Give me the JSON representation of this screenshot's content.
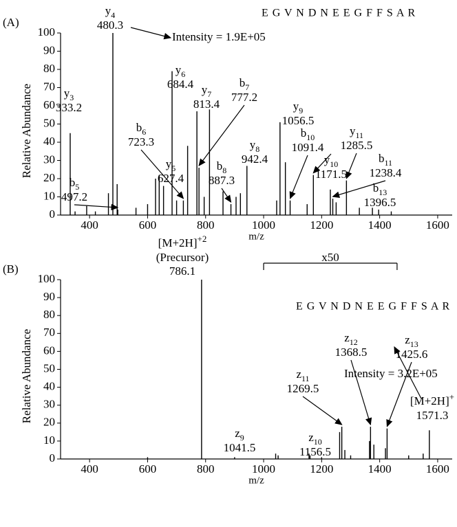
{
  "chart_data": [
    {
      "type": "bar",
      "panel": "(A)",
      "xlabel": "m/z",
      "ylabel": "Relative Abundance",
      "sequence": "E G V N D N E E G F F S A R",
      "annotations": [
        {
          "text": "Intensity = 1.9E+05"
        }
      ],
      "xlim": [
        300,
        1650
      ],
      "ylim": [
        0,
        100
      ],
      "xticks": [
        400,
        600,
        800,
        1000,
        1200,
        1400,
        1600
      ],
      "yticks": [
        0,
        10,
        20,
        30,
        40,
        50,
        60,
        70,
        80,
        90,
        100
      ],
      "color": "#000000",
      "x": [
        333.2,
        480.3,
        497.2,
        627.4,
        684.4,
        723.3,
        813.4,
        777.2,
        887.3,
        942.4,
        1056.5,
        1091.4,
        1171.5,
        1238.4,
        1285.5,
        1396.5,
        390,
        465,
        495,
        600,
        640,
        655,
        700,
        738,
        770,
        795,
        860,
        905,
        920,
        1045,
        1075,
        1150,
        1230,
        1250,
        1330,
        1375,
        560,
        420,
        350,
        1440
      ],
      "values": [
        45,
        100,
        3,
        20,
        79,
        8,
        58,
        26,
        6,
        27,
        51,
        8,
        22,
        9,
        19,
        3,
        5,
        12,
        17,
        6,
        22,
        16,
        8,
        38,
        57,
        10,
        13,
        10,
        12,
        8,
        29,
        6,
        14,
        7,
        4,
        4,
        4,
        2,
        2,
        2
      ],
      "labels": [
        {
          "ion": "y",
          "sub": "3",
          "mz": "333.2"
        },
        {
          "ion": "y",
          "sub": "4",
          "mz": "480.3"
        },
        {
          "ion": "b",
          "sub": "5",
          "mz": "497.2"
        },
        {
          "ion": "y",
          "sub": "5",
          "mz": "627.4"
        },
        {
          "ion": "y",
          "sub": "6",
          "mz": "684.4"
        },
        {
          "ion": "b",
          "sub": "6",
          "mz": "723.3"
        },
        {
          "ion": "y",
          "sub": "7",
          "mz": "813.4"
        },
        {
          "ion": "b",
          "sub": "7",
          "mz": "777.2"
        },
        {
          "ion": "b",
          "sub": "8",
          "mz": "887.3"
        },
        {
          "ion": "y",
          "sub": "8",
          "mz": "942.4"
        },
        {
          "ion": "y",
          "sub": "9",
          "mz": "1056.5"
        },
        {
          "ion": "b",
          "sub": "10",
          "mz": "1091.4"
        },
        {
          "ion": "y",
          "sub": "10",
          "mz": "1171.5"
        },
        {
          "ion": "b",
          "sub": "11",
          "mz": "1238.4"
        },
        {
          "ion": "y",
          "sub": "11",
          "mz": "1285.5"
        },
        {
          "ion": "b",
          "sub": "13",
          "mz": "1396.5"
        },
        null,
        null,
        null,
        null,
        null,
        null,
        null,
        null,
        null,
        null,
        null,
        null,
        null,
        null,
        null,
        null,
        null,
        null,
        null,
        null,
        null,
        null,
        null,
        null
      ]
    },
    {
      "type": "bar",
      "panel": "(B)",
      "xlabel": "m/z",
      "ylabel": "Relative Abundance",
      "sequence": "E G V N D N E E G F F S A R",
      "annotations": [
        {
          "text": "Intensity = 3.2E+05"
        },
        {
          "text": "x50"
        }
      ],
      "xlim": [
        300,
        1650
      ],
      "ylim": [
        0,
        100
      ],
      "xticks": [
        400,
        600,
        800,
        1000,
        1200,
        1400,
        1600
      ],
      "yticks": [
        0,
        10,
        20,
        30,
        40,
        50,
        60,
        70,
        80,
        90,
        100
      ],
      "color": "#000000",
      "x": [
        786.1,
        1041.5,
        1156.5,
        1269.5,
        1368.5,
        1425.6,
        1571.3,
        1262,
        1280,
        1365,
        1380,
        1050,
        1160,
        1300,
        1500,
        1550,
        900,
        600,
        1200,
        1420
      ],
      "values": [
        100,
        3,
        3,
        18,
        18,
        17,
        16,
        15,
        5,
        10,
        8,
        2,
        2,
        2,
        2,
        3,
        1,
        1,
        1,
        6
      ],
      "labels": [
        {
          "ion": "[M+2H]",
          "sup": "+2",
          "note": "(Precursor)",
          "mz": "786.1"
        },
        {
          "ion": "z",
          "sub": "9",
          "mz": "1041.5"
        },
        {
          "ion": "z",
          "sub": "10",
          "mz": "1156.5"
        },
        {
          "ion": "z",
          "sub": "11",
          "mz": "1269.5"
        },
        {
          "ion": "z",
          "sub": "12",
          "mz": "1368.5"
        },
        {
          "ion": "z",
          "sub": "13",
          "mz": "1425.6"
        },
        {
          "ion": "[M+2H]",
          "sup": "+",
          "mz": "1571.3"
        },
        null,
        null,
        null,
        null,
        null,
        null,
        null,
        null,
        null,
        null,
        null,
        null,
        null
      ]
    }
  ]
}
